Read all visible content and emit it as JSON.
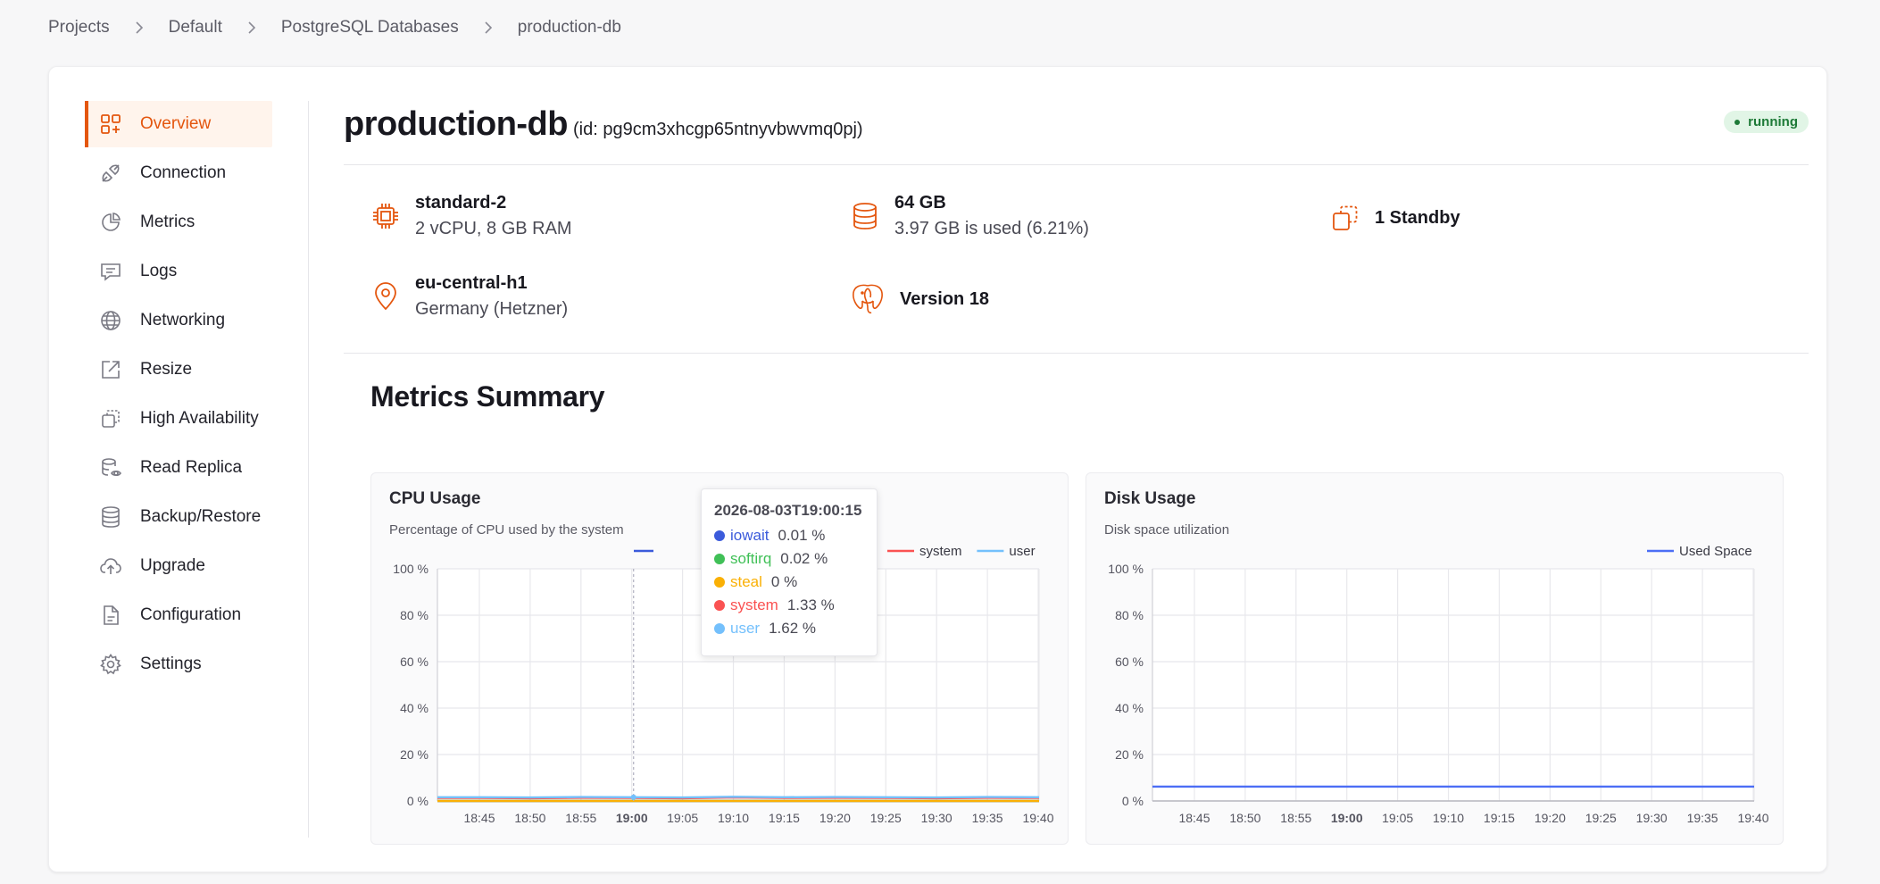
{
  "breadcrumb": {
    "items": [
      "Projects",
      "Default",
      "PostgreSQL Databases"
    ],
    "current": "production-db"
  },
  "sidebar": {
    "items": [
      {
        "label": "Overview",
        "icon": "overview-icon",
        "active": true
      },
      {
        "label": "Connection",
        "icon": "plug-icon"
      },
      {
        "label": "Metrics",
        "icon": "pie-chart-icon"
      },
      {
        "label": "Logs",
        "icon": "message-icon"
      },
      {
        "label": "Networking",
        "icon": "globe-icon"
      },
      {
        "label": "Resize",
        "icon": "external-link-icon"
      },
      {
        "label": "High Availability",
        "icon": "copy-icon"
      },
      {
        "label": "Read Replica",
        "icon": "database-eye-icon"
      },
      {
        "label": "Backup/Restore",
        "icon": "database-icon"
      },
      {
        "label": "Upgrade",
        "icon": "cloud-upload-icon"
      },
      {
        "label": "Configuration",
        "icon": "file-icon"
      },
      {
        "label": "Settings",
        "icon": "gear-icon"
      }
    ]
  },
  "header": {
    "title": "production-db",
    "id_text": "(id: pg9cm3xhcgp65ntnyvbwvmq0pj)",
    "status": "running"
  },
  "info": {
    "size": {
      "label": "standard-2",
      "detail": "2 vCPU, 8 GB RAM"
    },
    "storage": {
      "label": "64 GB",
      "detail": "3.97 GB is used (6.21%)"
    },
    "standby": {
      "label": "1 Standby"
    },
    "location": {
      "label": "eu-central-h1",
      "detail": "Germany (Hetzner)"
    },
    "version": {
      "label": "Version 18"
    }
  },
  "metrics": {
    "title": "Metrics Summary"
  },
  "colors": {
    "accent": "#e4560e",
    "iowait": "#3b5bdb",
    "softirq": "#40c057",
    "steal": "#fab005",
    "system": "#fa5252",
    "user": "#74c0fc",
    "used_space": "#4c6ef5"
  },
  "chart_data": [
    {
      "type": "line",
      "title": "CPU Usage",
      "subtitle": "Percentage of CPU used by the system",
      "x_ticks": [
        "18:45",
        "18:50",
        "18:55",
        "19:00",
        "19:05",
        "19:10",
        "19:15",
        "19:20",
        "19:25",
        "19:30",
        "19:35",
        "19:40"
      ],
      "y_ticks": [
        "0 %",
        "20 %",
        "40 %",
        "60 %",
        "80 %",
        "100 %"
      ],
      "ylim": [
        0,
        100
      ],
      "legend": [
        "iowait",
        "softirq",
        "steal",
        "system",
        "user"
      ],
      "legend_visible": [
        "steal",
        "system",
        "user"
      ],
      "series": [
        {
          "name": "iowait",
          "values": [
            0.01,
            0.01,
            0.01,
            0.01,
            0.01,
            0.01,
            0.01,
            0.01,
            0.01,
            0.01,
            0.01,
            0.01
          ]
        },
        {
          "name": "softirq",
          "values": [
            0.02,
            0.02,
            0.02,
            0.02,
            0.02,
            0.02,
            0.02,
            0.02,
            0.02,
            0.02,
            0.02,
            0.02
          ]
        },
        {
          "name": "steal",
          "values": [
            0,
            0,
            0,
            0,
            0,
            0,
            0,
            0,
            0,
            0,
            0,
            0
          ]
        },
        {
          "name": "system",
          "values": [
            1.3,
            1.2,
            1.4,
            1.33,
            1.2,
            1.5,
            1.3,
            1.4,
            1.3,
            1.2,
            1.4,
            1.3
          ]
        },
        {
          "name": "user",
          "values": [
            1.6,
            1.5,
            1.7,
            1.62,
            1.5,
            1.8,
            1.6,
            1.7,
            1.6,
            1.5,
            1.7,
            1.6
          ]
        }
      ],
      "tooltip": {
        "time": "2026-08-03T19:00:15",
        "rows": [
          {
            "name": "iowait",
            "value": "0.01 %"
          },
          {
            "name": "softirq",
            "value": "0.02 %"
          },
          {
            "name": "steal",
            "value": "0 %"
          },
          {
            "name": "system",
            "value": "1.33 %"
          },
          {
            "name": "user",
            "value": "1.62 %"
          }
        ]
      }
    },
    {
      "type": "line",
      "title": "Disk Usage",
      "subtitle": "Disk space utilization",
      "x_ticks": [
        "18:45",
        "18:50",
        "18:55",
        "19:00",
        "19:05",
        "19:10",
        "19:15",
        "19:20",
        "19:25",
        "19:30",
        "19:35",
        "19:40"
      ],
      "y_ticks": [
        "0 %",
        "20 %",
        "40 %",
        "60 %",
        "80 %",
        "100 %"
      ],
      "ylim": [
        0,
        100
      ],
      "legend": [
        "Used Space"
      ],
      "series": [
        {
          "name": "Used Space",
          "values": [
            6.21,
            6.21,
            6.21,
            6.21,
            6.21,
            6.21,
            6.21,
            6.21,
            6.21,
            6.21,
            6.21,
            6.21
          ]
        }
      ]
    }
  ]
}
